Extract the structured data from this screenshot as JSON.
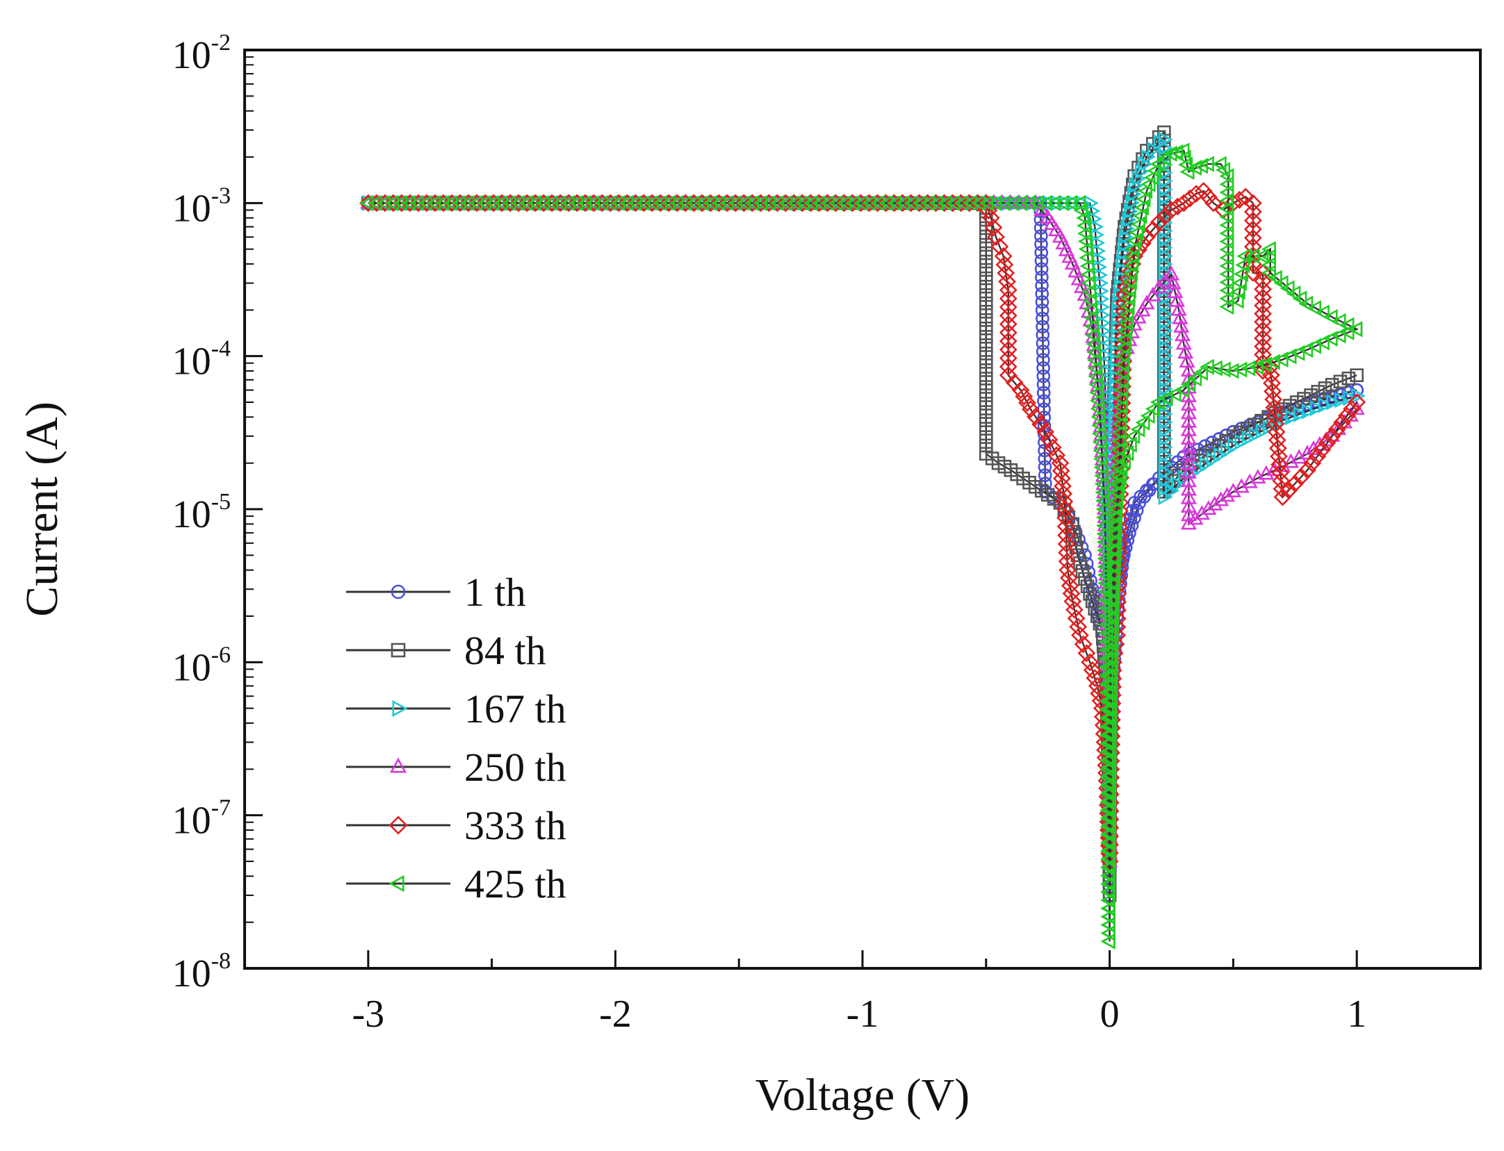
{
  "chart_data": {
    "type": "line",
    "title": "",
    "xlabel": "Voltage (V)",
    "ylabel": "Current (A)",
    "xlim": [
      -3.5,
      1.5
    ],
    "ylim": [
      1e-08,
      0.01
    ],
    "yscale": "log",
    "x_ticks": [
      -3,
      -2,
      -1,
      0,
      1
    ],
    "x_tick_labels": [
      "-3",
      "-2",
      "-1",
      "0",
      "1"
    ],
    "y_ticks": [
      1e-08,
      1e-07,
      1e-06,
      1e-05,
      0.0001,
      0.001,
      0.01
    ],
    "y_tick_labels": [
      {
        "base": "10",
        "exp": "-8"
      },
      {
        "base": "10",
        "exp": "-7"
      },
      {
        "base": "10",
        "exp": "-6"
      },
      {
        "base": "10",
        "exp": "-5"
      },
      {
        "base": "10",
        "exp": "-4"
      },
      {
        "base": "10",
        "exp": "-3"
      },
      {
        "base": "10",
        "exp": "-2"
      }
    ],
    "legend_position": "left-bottom",
    "series": [
      {
        "name": "1 th",
        "color": "#4a4fd6",
        "marker": "circle",
        "x": [
          -3,
          -0.5,
          -0.3,
          -0.28,
          -0.26,
          -0.2,
          -0.15,
          -0.1,
          -0.07,
          -0.05,
          -0.03,
          -0.015,
          -0.005,
          0,
          0.005,
          0.015,
          0.03,
          0.06,
          0.1,
          0.2,
          0.3,
          0.5,
          0.7,
          0.9,
          1.0,
          1.0,
          0.7,
          0.5,
          0.3,
          0.2,
          0.12,
          0.08,
          0.05,
          0.03,
          0.015,
          0.005,
          0
        ],
        "y": [
          0.001,
          0.001,
          0.001,
          0.001,
          1.3e-05,
          1.1e-05,
          8e-06,
          5e-06,
          3e-06,
          2.2e-06,
          1.6e-06,
          8e-07,
          2e-07,
          3e-08,
          2e-07,
          8e-07,
          2e-06,
          6e-06,
          1.1e-05,
          1.6e-05,
          2.2e-05,
          3.2e-05,
          4.3e-05,
          5.5e-05,
          6e-05,
          6e-05,
          4.3e-05,
          3.2e-05,
          2.2e-05,
          1.6e-05,
          1.1e-05,
          7e-06,
          4.5e-06,
          3e-06,
          2e-06,
          1e-06,
          3e-08
        ]
      },
      {
        "name": "84 th",
        "color": "#555555",
        "marker": "square",
        "x": [
          -3,
          -0.5,
          -0.5,
          -0.45,
          -0.4,
          -0.3,
          -0.2,
          -0.15,
          -0.13,
          -0.1,
          -0.07,
          -0.05,
          -0.03,
          -0.015,
          -0.005,
          0,
          0.005,
          0.015,
          0.03,
          0.06,
          0.1,
          0.15,
          0.2,
          0.22,
          0.22,
          0.3,
          0.5,
          0.7,
          0.9,
          1.0
        ],
        "y": [
          0.001,
          0.001,
          2.3e-05,
          2e-05,
          1.8e-05,
          1.4e-05,
          1.1e-05,
          8e-06,
          5e-06,
          3.5e-06,
          2.5e-06,
          2e-06,
          1.6e-06,
          8e-07,
          2e-07,
          3e-08,
          3e-06,
          4e-05,
          0.00025,
          0.0007,
          0.0015,
          0.0022,
          0.0027,
          0.0029,
          1.3e-05,
          1.8e-05,
          3e-05,
          4.5e-05,
          6.5e-05,
          7.5e-05
        ]
      },
      {
        "name": "167 th",
        "color": "#1ec8d8",
        "marker": "triangle-right",
        "x": [
          -3,
          -0.08,
          -0.06,
          -0.04,
          -0.02,
          -0.01,
          -0.005,
          0,
          0.005,
          0.015,
          0.03,
          0.06,
          0.1,
          0.15,
          0.2,
          0.22,
          0.22,
          0.3,
          0.5,
          0.7,
          0.9,
          1.0
        ],
        "y": [
          0.001,
          0.001,
          0.0007,
          0.0003,
          8e-05,
          2e-05,
          3e-06,
          5e-08,
          3e-06,
          3e-05,
          0.0002,
          0.0006,
          0.0013,
          0.002,
          0.0025,
          0.0026,
          1.2e-05,
          1.6e-05,
          2.6e-05,
          3.8e-05,
          5e-05,
          5.5e-05
        ]
      },
      {
        "name": "250 th",
        "color": "#d838d8",
        "marker": "triangle-up",
        "x": [
          -3,
          -0.3,
          -0.25,
          -0.2,
          -0.15,
          -0.1,
          -0.07,
          -0.04,
          -0.02,
          -0.01,
          -0.005,
          0,
          0.005,
          0.015,
          0.03,
          0.06,
          0.1,
          0.15,
          0.2,
          0.25,
          0.28,
          0.3,
          0.32,
          0.32,
          0.4,
          0.5,
          0.6,
          0.7,
          0.8,
          0.9,
          1.0
        ],
        "y": [
          0.001,
          0.001,
          0.0008,
          0.0006,
          0.0004,
          0.00025,
          0.00015,
          5e-05,
          1e-05,
          2e-06,
          4e-07,
          5e-08,
          4e-07,
          3e-06,
          3e-05,
          0.0001,
          0.00016,
          0.00022,
          0.00028,
          0.00034,
          0.0002,
          0.00012,
          8e-05,
          8e-06,
          1e-05,
          1.3e-05,
          1.6e-05,
          1.9e-05,
          2.3e-05,
          3e-05,
          4.5e-05
        ]
      },
      {
        "name": "333 th",
        "color": "#e02020",
        "marker": "diamond",
        "x": [
          -3,
          -0.5,
          -0.48,
          -0.46,
          -0.43,
          -0.41,
          -0.41,
          -0.36,
          -0.32,
          -0.26,
          -0.2,
          -0.18,
          -0.17,
          -0.15,
          -0.12,
          -0.08,
          -0.05,
          -0.03,
          -0.02,
          -0.01,
          -0.005,
          0,
          0.005,
          0.015,
          0.03,
          0.06,
          0.1,
          0.15,
          0.2,
          0.25,
          0.3,
          0.35,
          0.38,
          0.42,
          0.46,
          0.5,
          0.55,
          0.58,
          0.58,
          0.62,
          0.62,
          0.65,
          0.7,
          0.8,
          0.9,
          1.0
        ],
        "y": [
          0.001,
          0.001,
          0.0008,
          0.0006,
          0.00045,
          0.00027,
          7.5e-05,
          6e-05,
          4.5e-05,
          3.2e-05,
          2e-05,
          1e-05,
          4e-06,
          2.5e-06,
          1.5e-06,
          1e-06,
          7e-07,
          5e-07,
          3e-07,
          1.5e-07,
          8e-08,
          5e-08,
          2e-07,
          1e-06,
          1.5e-06,
          0.00025,
          0.00045,
          0.0006,
          0.00075,
          0.0009,
          0.001,
          0.00115,
          0.0012,
          0.001,
          0.0009,
          0.001,
          0.0011,
          0.001,
          0.00035,
          0.00035,
          8e-05,
          8.5e-05,
          1.2e-05,
          1.8e-05,
          3e-05,
          5e-05
        ]
      },
      {
        "name": "425 th",
        "color": "#22cc22",
        "marker": "triangle-left",
        "x": [
          -3,
          -0.12,
          -0.1,
          -0.09,
          -0.08,
          -0.06,
          -0.04,
          -0.02,
          -0.01,
          -0.005,
          0,
          0.005,
          0.015,
          0.03,
          0.06,
          0.1,
          0.15,
          0.2,
          0.25,
          0.3,
          0.32,
          0.35,
          0.4,
          0.45,
          0.48,
          0.48,
          0.52,
          0.55,
          0.62,
          0.65,
          0.65,
          0.7,
          0.8,
          0.9,
          1.0,
          1.0,
          0.9,
          0.8,
          0.7,
          0.6,
          0.5,
          0.4,
          0.3,
          0.2,
          0.1,
          0.05,
          0.02,
          0.005,
          0
        ],
        "y": [
          0.001,
          0.001,
          0.0008,
          0.0005,
          0.0003,
          0.00012,
          4e-05,
          1e-05,
          2e-06,
          2e-07,
          1.5e-08,
          3e-07,
          2e-06,
          1e-05,
          0.0001,
          0.0005,
          0.0012,
          0.0018,
          0.0021,
          0.0022,
          0.0016,
          0.0017,
          0.0018,
          0.0018,
          0.0015,
          0.00021,
          0.00023,
          0.00045,
          0.00045,
          0.0005,
          0.00035,
          0.0003,
          0.00022,
          0.00018,
          0.00015,
          0.00015,
          0.00013,
          0.00011,
          9.5e-05,
          8.5e-05,
          8e-05,
          8.5e-05,
          6e-05,
          5e-05,
          3e-05,
          1.8e-05,
          8e-06,
          1.5e-06,
          1.5e-08
        ]
      }
    ]
  }
}
